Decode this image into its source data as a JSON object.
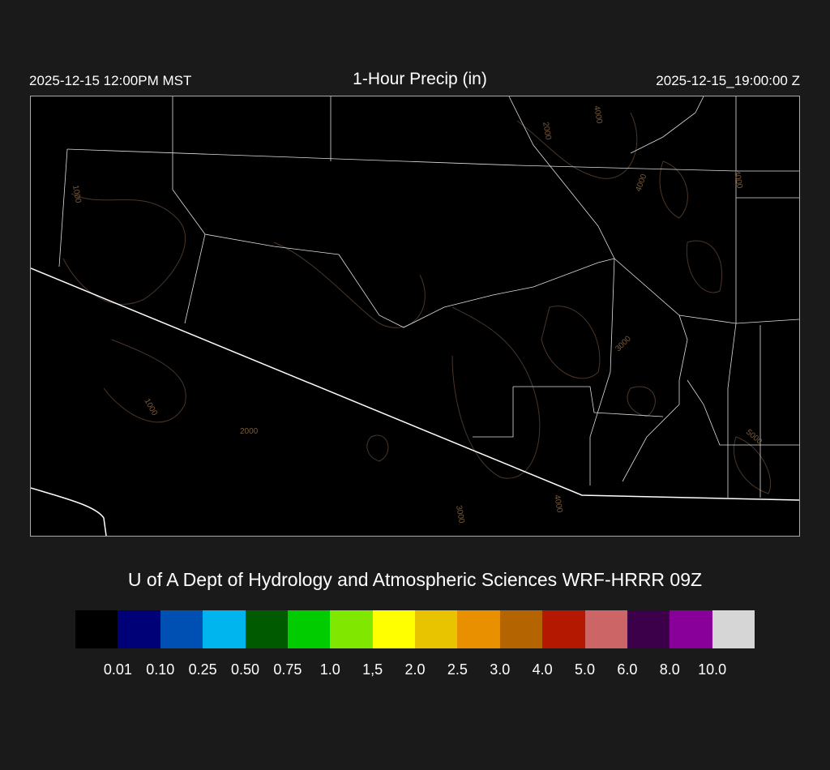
{
  "header": {
    "title": "1-Hour Precip (in)",
    "local_time": "2025-12-15 12:00PM MST",
    "utc_time": "2025-12-15_19:00:00 Z"
  },
  "map": {
    "contour_labels": [
      "1000",
      "1000",
      "2000",
      "2000",
      "3000",
      "3000",
      "4000",
      "4000",
      "4000",
      "4000",
      "5000"
    ],
    "boundary_color": "#ffffff",
    "contour_color": "#5a4030"
  },
  "credit": "U of A Dept of Hydrology and Atmospheric Sciences WRF-HRRR 09Z",
  "colorbar": {
    "colors": [
      "#000000",
      "#000077",
      "#0050b4",
      "#00b4ee",
      "#005a00",
      "#00cc00",
      "#80e800",
      "#ffff00",
      "#e8c400",
      "#e89000",
      "#b46400",
      "#b41800",
      "#cc6666",
      "#3c004a",
      "#880099",
      "#d6d6d6"
    ],
    "labels": [
      "0.01",
      "0.10",
      "0.25",
      "0.50",
      "0.75",
      "1.0",
      "1,5",
      "2.0",
      "2.5",
      "3.0",
      "4.0",
      "5.0",
      "6.0",
      "8.0",
      "10.0"
    ]
  }
}
